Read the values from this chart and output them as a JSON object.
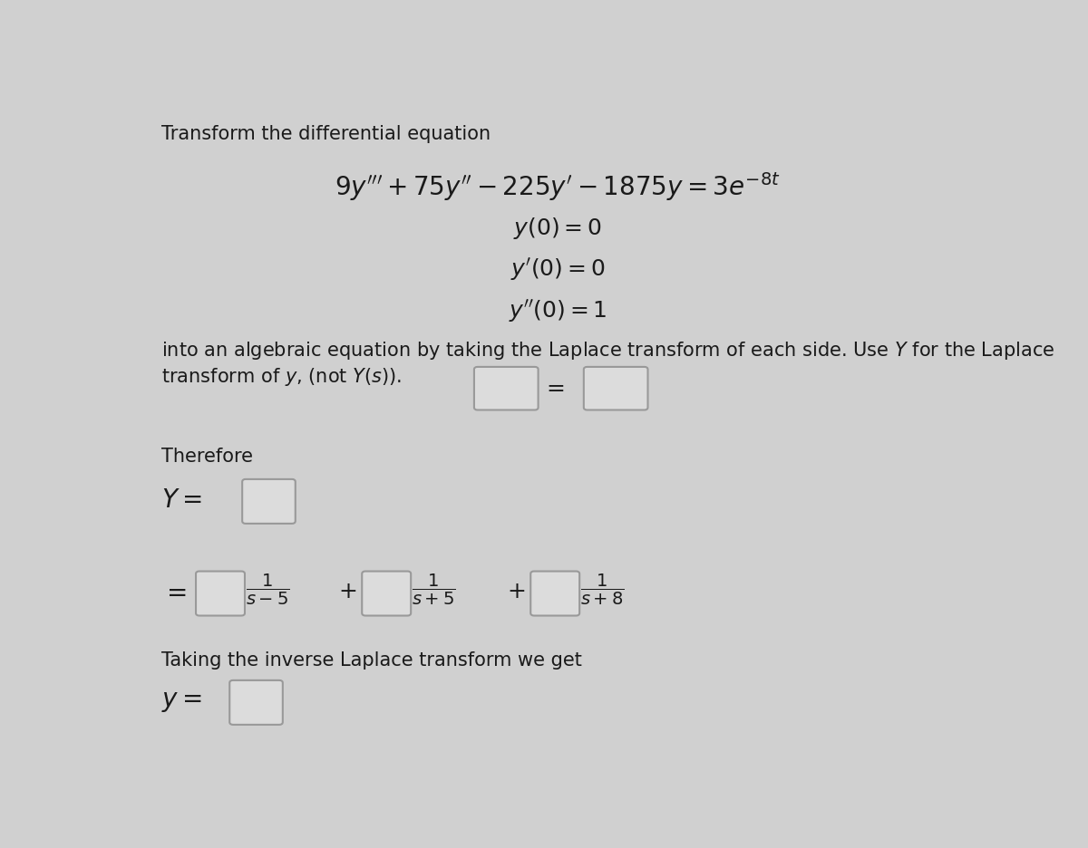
{
  "background_color": "#d0d0d0",
  "text_color": "#1a1a1a",
  "title_text": "Transform the differential equation",
  "box_color": "#dcdcdc",
  "box_edge_color": "#999999",
  "font_size_title": 15,
  "font_size_ode": 20,
  "font_size_ic": 18,
  "font_size_instruction": 15,
  "font_size_therefore": 15,
  "figsize": [
    12.0,
    9.36
  ],
  "dpi": 100
}
